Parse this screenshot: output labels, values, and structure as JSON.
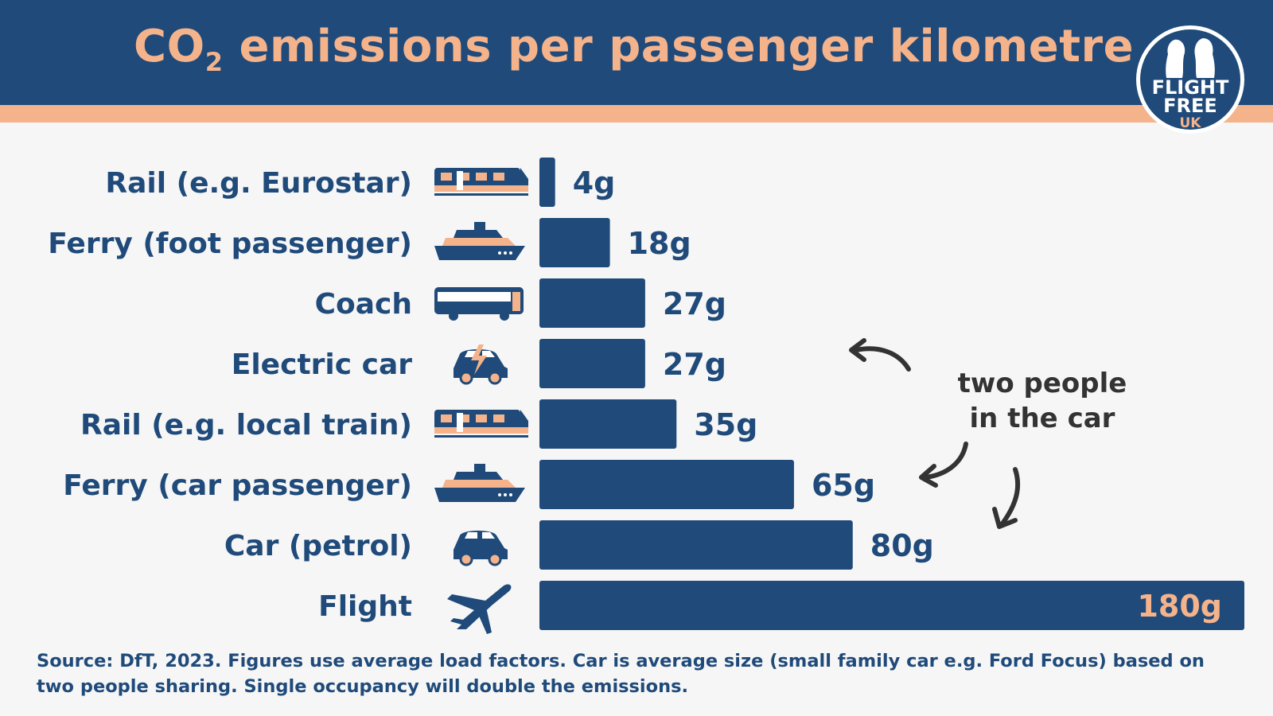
{
  "header": {
    "title_main": "CO",
    "title_sub": "2",
    "title_rest": " emissions per passenger kilometre",
    "logo": {
      "line1": "FLIGHT",
      "line2": "FREE",
      "line3": "UK"
    }
  },
  "colors": {
    "header_bg": "#1f4a7a",
    "accent": "#f4b38b",
    "bar": "#1f4a7a",
    "background": "#f6f6f6"
  },
  "chart_data": {
    "type": "bar",
    "orientation": "horizontal",
    "title": "CO2 emissions per passenger kilometre",
    "categories": [
      "Rail (e.g. Eurostar)",
      "Ferry (foot passenger)",
      "Coach",
      "Electric car",
      "Rail (e.g. local train)",
      "Ferry (car passenger)",
      "Car (petrol)",
      "Flight"
    ],
    "icons": [
      "train-icon",
      "ferry-icon",
      "coach-icon",
      "electric-car-icon",
      "train-icon",
      "ferry-icon",
      "car-icon",
      "plane-icon"
    ],
    "values": [
      4,
      18,
      27,
      27,
      35,
      65,
      80,
      180
    ],
    "value_labels": [
      "4g",
      "18g",
      "27g",
      "27g",
      "35g",
      "65g",
      "80g",
      "180g"
    ],
    "xlim": [
      0,
      180
    ],
    "grid": false,
    "legend": "none"
  },
  "annotation": {
    "line1": "two people",
    "line2": "in the car"
  },
  "source": "Source: DfT, 2023. Figures use average load factors. Car is average size (small family car e.g. Ford Focus) based on two people sharing. Single occupancy will double the emissions."
}
